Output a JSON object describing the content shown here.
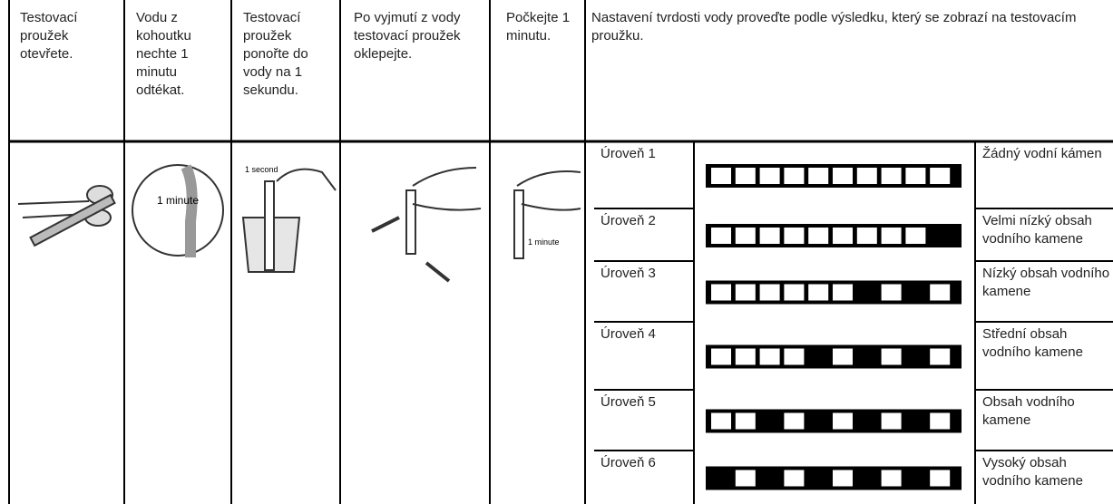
{
  "steps": [
    {
      "text": "Testovací proužek otevřete."
    },
    {
      "text": "Vodu z kohoutku nechte 1 minutu odtékat.",
      "image_label": "1 minute"
    },
    {
      "text": "Testovací proužek ponořte do vody na 1 sekundu.",
      "image_label": "1 second"
    },
    {
      "text": "Po vyjmutí z vody testovací proužek oklepejte."
    },
    {
      "text": "Počkejte 1 minutu.",
      "image_label": "1 minute"
    }
  ],
  "result_header": "Nastavení tvrdosti vody proveďte podle výsledku, který se zobrazí na testovacím proužku.",
  "levels": [
    {
      "level": "Úroveň 1",
      "description": "Žádný vodní kámen"
    },
    {
      "level": "Úroveň 2",
      "description": "Velmi nízký obsah vodního kamene"
    },
    {
      "level": "Úroveň 3",
      "description": "Nízký obsah vodního kamene"
    },
    {
      "level": "Úroveň 4",
      "description": "Střední obsah vodního kamene"
    },
    {
      "level": "Úroveň 5",
      "description": "Obsah vodního kamene"
    },
    {
      "level": "Úroveň 6",
      "description": "Vysoký obsah vodního kamene"
    }
  ]
}
